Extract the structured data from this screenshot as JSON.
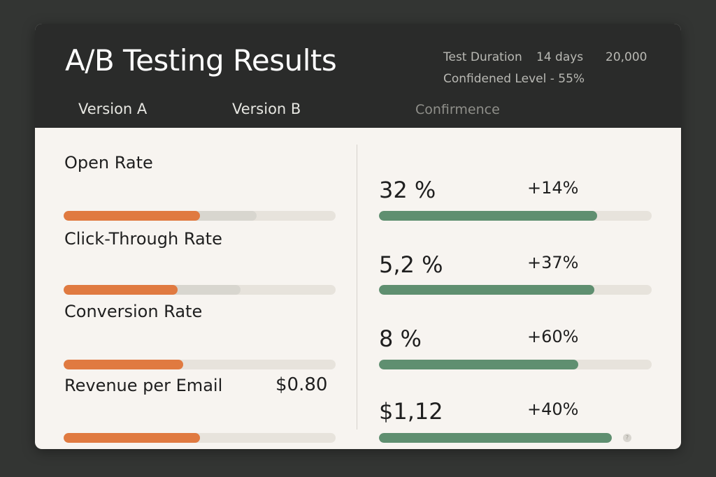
{
  "header": {
    "title": "A/B Testing Results",
    "test_duration_label": "Test Duration",
    "test_duration_value": "14 days",
    "sample_value": "20,000",
    "confidence_text": "Confidened Level - 55%"
  },
  "tabs": [
    {
      "label": "Version A"
    },
    {
      "label": "Version B"
    },
    {
      "label": "Confirmence"
    }
  ],
  "metrics": [
    {
      "label": "Open Rate",
      "a_value": "",
      "b_value": "32 %",
      "lift": "+14%",
      "a_fill": 0.5,
      "a_ghost": 0.71,
      "b_fill": 0.8
    },
    {
      "label": "Click-Through Rate",
      "a_value": "",
      "b_value": "5,2 %",
      "lift": "+37%",
      "a_fill": 0.42,
      "a_ghost": 0.65,
      "b_fill": 0.79
    },
    {
      "label": "Conversion Rate",
      "a_value": "",
      "b_value": "8 %",
      "lift": "+60%",
      "a_fill": 0.44,
      "a_ghost": 0.44,
      "b_fill": 0.73
    },
    {
      "label": "Revenue per Email",
      "a_value": "$0.80",
      "b_value": "$1,12",
      "lift": "+40%",
      "a_fill": 0.5,
      "a_ghost": 0.5,
      "b_fill": 0.85
    }
  ],
  "colors": {
    "version_a": "#e07a40",
    "version_b": "#5f8f70",
    "track": "#e7e3dc",
    "header_bg": "#2a2b2a"
  },
  "icons": {
    "info": "info-icon"
  }
}
